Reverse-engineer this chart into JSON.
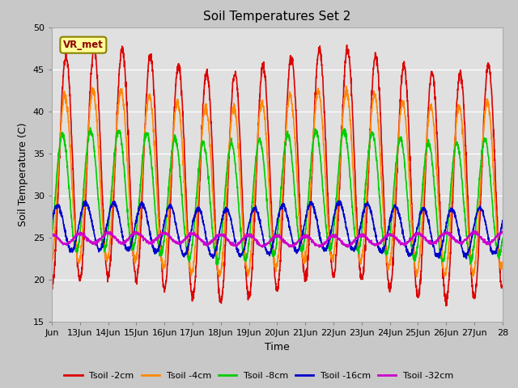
{
  "title": "Soil Temperatures Set 2",
  "xlabel": "Time",
  "ylabel": "Soil Temperature (C)",
  "ylim": [
    15,
    50
  ],
  "yticks": [
    15,
    20,
    25,
    30,
    35,
    40,
    45,
    50
  ],
  "fig_bg_color": "#c8c8c8",
  "plot_bg_color": "#e0e0e0",
  "annotation_text": "VR_met",
  "annotation_box_color": "#ffff99",
  "annotation_box_edge": "#8B8000",
  "series": {
    "Tsoil -2cm": {
      "color": "#dd0000",
      "lw": 1.2
    },
    "Tsoil -4cm": {
      "color": "#ff8800",
      "lw": 1.2
    },
    "Tsoil -8cm": {
      "color": "#00cc00",
      "lw": 1.2
    },
    "Tsoil -16cm": {
      "color": "#0000cc",
      "lw": 1.2
    },
    "Tsoil -32cm": {
      "color": "#cc00cc",
      "lw": 1.2
    }
  },
  "xtick_labels": [
    "Jun",
    "13Jun",
    "14Jun",
    "15Jun",
    "16Jun",
    "17Jun",
    "18Jun",
    "19Jun",
    "20Jun",
    "21Jun",
    "22Jun",
    "23Jun",
    "24Jun",
    "25Jun",
    "26Jun",
    "27Jun",
    "28"
  ],
  "xtick_positions": [
    0,
    1,
    2,
    3,
    4,
    5,
    6,
    7,
    8,
    9,
    10,
    11,
    12,
    13,
    14,
    15,
    16
  ]
}
